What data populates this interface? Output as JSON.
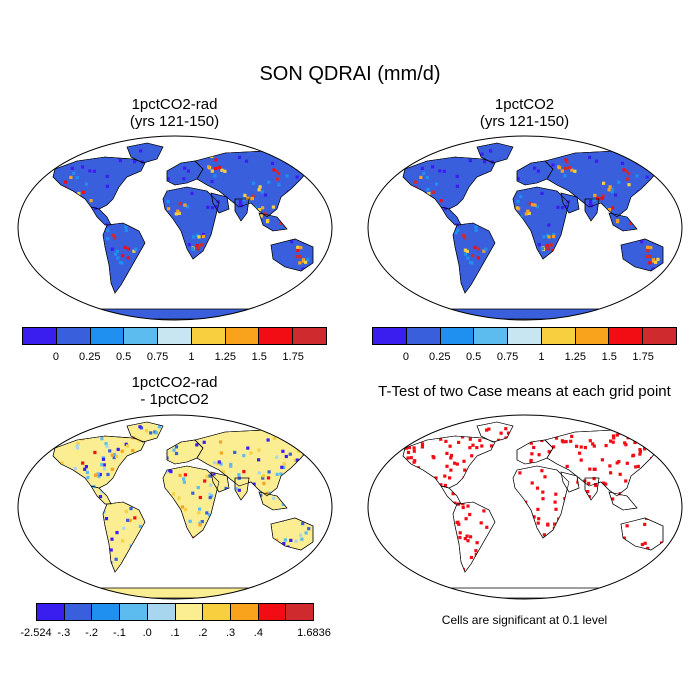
{
  "title": "SON QDRAI (mm/d)",
  "panels": [
    {
      "title_line1": "1pctCO2-rad",
      "title_line2": "(yrs 121-150)"
    },
    {
      "title_line1": "1pctCO2",
      "title_line2": "(yrs 121-150)"
    },
    {
      "title_line1": "1pctCO2-rad",
      "title_line2": "- 1pctCO2"
    },
    {
      "title_line1": "T-Test of two Case means at each grid point"
    }
  ],
  "significance_note": "Cells are significant at 0.1 level",
  "colorbars": {
    "absolute": {
      "colors": [
        "#3a1ef0",
        "#3a5fdd",
        "#1f8ff0",
        "#5cbcf0",
        "#c8e6f2",
        "#f8cf3e",
        "#f9a31c",
        "#f20c14",
        "#cf2a2e"
      ],
      "tick_labels": [
        "0",
        "0.25",
        "0.5",
        "0.75",
        "1",
        "1.25",
        "1.5",
        "1.75"
      ]
    },
    "difference": {
      "colors": [
        "#3a1ef0",
        "#3a5fdd",
        "#1f8ff0",
        "#5cbcf0",
        "#a8d6ee",
        "#fbee92",
        "#f8cf3e",
        "#f9a31c",
        "#f20c14",
        "#cf2a2e"
      ],
      "min_label": "-2.524",
      "max_label": "1.6836",
      "tick_labels": [
        "-.3",
        "-.2",
        "-.1",
        ".0",
        ".1",
        ".2",
        ".3",
        ".4"
      ]
    }
  }
}
